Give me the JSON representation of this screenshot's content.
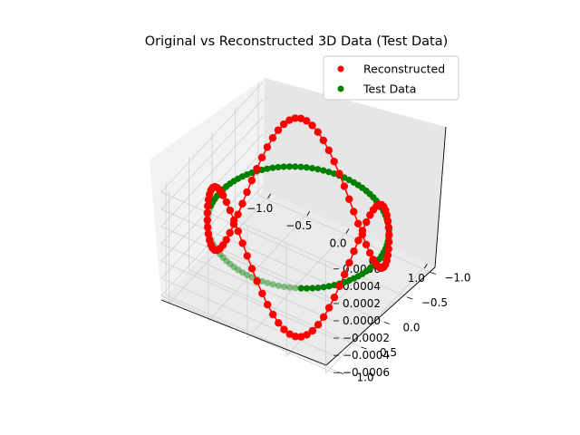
{
  "chart_data": {
    "type": "scatter",
    "projection": "3d",
    "title": "Original vs Reconstructed 3D Data (Test Data)",
    "xlabel": "",
    "ylabel": "",
    "zlabel": "",
    "xlim": [
      -1.1,
      1.1
    ],
    "ylim": [
      -1.1,
      1.1
    ],
    "zlim": [
      -0.00065,
      0.00065
    ],
    "x_ticks": [
      "−1.0",
      "−0.5",
      "0.0",
      "0.5",
      "1.0"
    ],
    "y_ticks": [
      "−1.0",
      "−0.5",
      "0.0",
      "0.5",
      "1.0"
    ],
    "z_ticks": [
      "−0.0006",
      "−0.0004",
      "−0.0002",
      "0.0000",
      "0.0002",
      "0.0004",
      "0.0006"
    ],
    "grid": true,
    "legend_position": "upper right",
    "series": [
      {
        "name": "Reconstructed",
        "color": "#ff0000",
        "marker": "o",
        "connected": true,
        "points": 100,
        "shape": "circle x=cos(t), y=sin(t), z varying with amplitude ~0.0007"
      },
      {
        "name": "Test Data",
        "color": "#008000",
        "marker": "o",
        "connected": false,
        "points": 100,
        "shape": "unit circle x=cos(t), y=sin(t), z=0"
      }
    ]
  }
}
